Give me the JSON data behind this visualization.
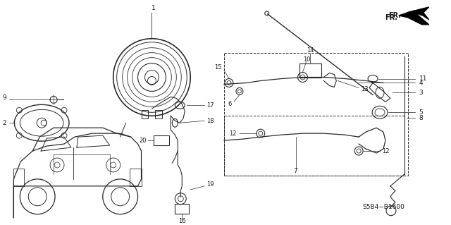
{
  "background_color": "#ffffff",
  "diagram_code": "S5B4−B1600",
  "line_color": "#2a2a2a",
  "text_color": "#1a1a1a",
  "figsize": [
    6.4,
    3.19
  ],
  "dpi": 100
}
